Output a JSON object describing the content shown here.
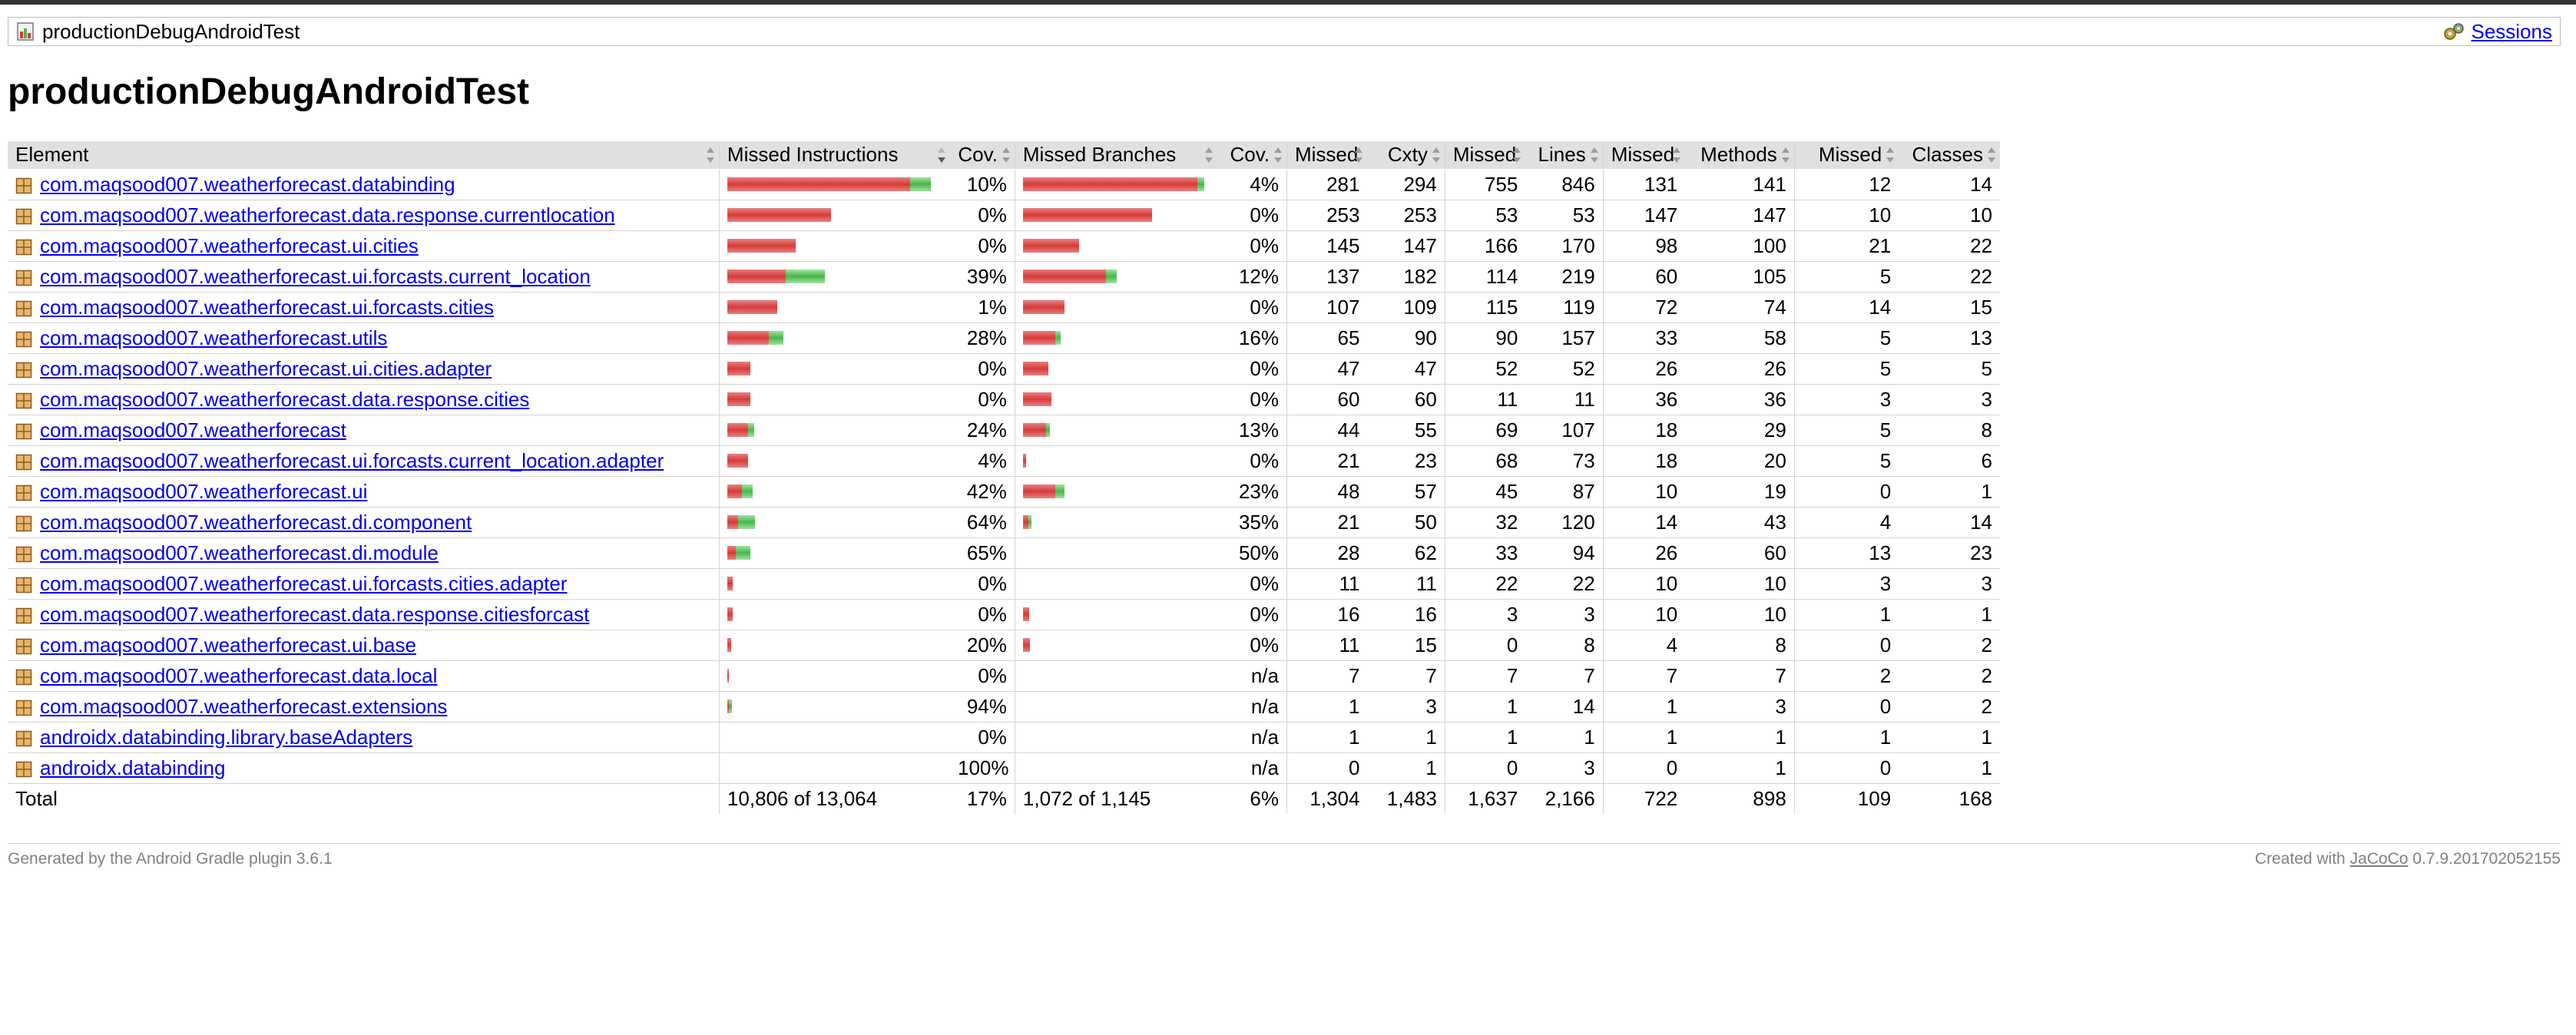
{
  "breadcrumb": {
    "report_label": "productionDebugAndroidTest",
    "sessions_label": "Sessions"
  },
  "page_title": "productionDebugAndroidTest",
  "table": {
    "headers": [
      "Element",
      "Missed Instructions",
      "Cov.",
      "Missed Branches",
      "Cov.",
      "Missed",
      "Cxty",
      "Missed",
      "Lines",
      "Missed",
      "Methods",
      "Missed",
      "Classes"
    ],
    "rows": [
      {
        "name": "com.maqsood007.weatherforecast.databinding",
        "instr_cov": "10%",
        "instr_bar": [
          0.88,
          0.1
        ],
        "branch_cov": "4%",
        "branch_bar": [
          0.97,
          0.04
        ],
        "cxty_missed": "281",
        "cxty": "294",
        "lines_missed": "755",
        "lines": "846",
        "methods_missed": "131",
        "methods": "141",
        "classes_missed": "12",
        "classes": "14"
      },
      {
        "name": "com.maqsood007.weatherforecast.data.response.currentlocation",
        "instr_cov": "0%",
        "instr_bar": [
          0.5,
          0
        ],
        "branch_cov": "0%",
        "branch_bar": [
          0.72,
          0
        ],
        "cxty_missed": "253",
        "cxty": "253",
        "lines_missed": "53",
        "lines": "53",
        "methods_missed": "147",
        "methods": "147",
        "classes_missed": "10",
        "classes": "10"
      },
      {
        "name": "com.maqsood007.weatherforecast.ui.cities",
        "instr_cov": "0%",
        "instr_bar": [
          0.33,
          0
        ],
        "branch_cov": "0%",
        "branch_bar": [
          0.31,
          0
        ],
        "cxty_missed": "145",
        "cxty": "147",
        "lines_missed": "166",
        "lines": "170",
        "methods_missed": "98",
        "methods": "100",
        "classes_missed": "21",
        "classes": "22"
      },
      {
        "name": "com.maqsood007.weatherforecast.ui.forcasts.current_location",
        "instr_cov": "39%",
        "instr_bar": [
          0.28,
          0.19
        ],
        "branch_cov": "12%",
        "branch_bar": [
          0.46,
          0.06
        ],
        "cxty_missed": "137",
        "cxty": "182",
        "lines_missed": "114",
        "lines": "219",
        "methods_missed": "60",
        "methods": "105",
        "classes_missed": "5",
        "classes": "22"
      },
      {
        "name": "com.maqsood007.weatherforecast.ui.forcasts.cities",
        "instr_cov": "1%",
        "instr_bar": [
          0.24,
          0
        ],
        "branch_cov": "0%",
        "branch_bar": [
          0.23,
          0
        ],
        "cxty_missed": "107",
        "cxty": "109",
        "lines_missed": "115",
        "lines": "119",
        "methods_missed": "72",
        "methods": "74",
        "classes_missed": "14",
        "classes": "15"
      },
      {
        "name": "com.maqsood007.weatherforecast.utils",
        "instr_cov": "28%",
        "instr_bar": [
          0.2,
          0.07
        ],
        "branch_cov": "16%",
        "branch_bar": [
          0.18,
          0.03
        ],
        "cxty_missed": "65",
        "cxty": "90",
        "lines_missed": "90",
        "lines": "157",
        "methods_missed": "33",
        "methods": "58",
        "classes_missed": "5",
        "classes": "13"
      },
      {
        "name": "com.maqsood007.weatherforecast.ui.cities.adapter",
        "instr_cov": "0%",
        "instr_bar": [
          0.11,
          0
        ],
        "branch_cov": "0%",
        "branch_bar": [
          0.14,
          0
        ],
        "cxty_missed": "47",
        "cxty": "47",
        "lines_missed": "52",
        "lines": "52",
        "methods_missed": "26",
        "methods": "26",
        "classes_missed": "5",
        "classes": "5"
      },
      {
        "name": "com.maqsood007.weatherforecast.data.response.cities",
        "instr_cov": "0%",
        "instr_bar": [
          0.11,
          0
        ],
        "branch_cov": "0%",
        "branch_bar": [
          0.16,
          0
        ],
        "cxty_missed": "60",
        "cxty": "60",
        "lines_missed": "11",
        "lines": "11",
        "methods_missed": "36",
        "methods": "36",
        "classes_missed": "3",
        "classes": "3"
      },
      {
        "name": "com.maqsood007.weatherforecast",
        "instr_cov": "24%",
        "instr_bar": [
          0.1,
          0.03
        ],
        "branch_cov": "13%",
        "branch_bar": [
          0.13,
          0.02
        ],
        "cxty_missed": "44",
        "cxty": "55",
        "lines_missed": "69",
        "lines": "107",
        "methods_missed": "18",
        "methods": "29",
        "classes_missed": "5",
        "classes": "8"
      },
      {
        "name": "com.maqsood007.weatherforecast.ui.forcasts.current_location.adapter",
        "instr_cov": "4%",
        "instr_bar": [
          0.1,
          0
        ],
        "branch_cov": "0%",
        "branch_bar": [
          0.015,
          0
        ],
        "cxty_missed": "21",
        "cxty": "23",
        "lines_missed": "68",
        "lines": "73",
        "methods_missed": "18",
        "methods": "20",
        "classes_missed": "5",
        "classes": "6"
      },
      {
        "name": "com.maqsood007.weatherforecast.ui",
        "instr_cov": "42%",
        "instr_bar": [
          0.07,
          0.05
        ],
        "branch_cov": "23%",
        "branch_bar": [
          0.18,
          0.05
        ],
        "cxty_missed": "48",
        "cxty": "57",
        "lines_missed": "45",
        "lines": "87",
        "methods_missed": "10",
        "methods": "19",
        "classes_missed": "0",
        "classes": "1"
      },
      {
        "name": "com.maqsood007.weatherforecast.di.component",
        "instr_cov": "64%",
        "instr_bar": [
          0.05,
          0.08
        ],
        "branch_cov": "35%",
        "branch_bar": [
          0.03,
          0.015
        ],
        "cxty_missed": "21",
        "cxty": "50",
        "lines_missed": "32",
        "lines": "120",
        "methods_missed": "14",
        "methods": "43",
        "classes_missed": "4",
        "classes": "14"
      },
      {
        "name": "com.maqsood007.weatherforecast.di.module",
        "instr_cov": "65%",
        "instr_bar": [
          0.04,
          0.07
        ],
        "branch_cov": "50%",
        "branch_bar": [
          0,
          0
        ],
        "cxty_missed": "28",
        "cxty": "62",
        "lines_missed": "33",
        "lines": "94",
        "methods_missed": "26",
        "methods": "60",
        "classes_missed": "13",
        "classes": "23"
      },
      {
        "name": "com.maqsood007.weatherforecast.ui.forcasts.cities.adapter",
        "instr_cov": "0%",
        "instr_bar": [
          0.025,
          0
        ],
        "branch_cov": "0%",
        "branch_bar": [
          0,
          0
        ],
        "cxty_missed": "11",
        "cxty": "11",
        "lines_missed": "22",
        "lines": "22",
        "methods_missed": "10",
        "methods": "10",
        "classes_missed": "3",
        "classes": "3"
      },
      {
        "name": "com.maqsood007.weatherforecast.data.response.citiesforcast",
        "instr_cov": "0%",
        "instr_bar": [
          0.025,
          0
        ],
        "branch_cov": "0%",
        "branch_bar": [
          0.035,
          0
        ],
        "cxty_missed": "16",
        "cxty": "16",
        "lines_missed": "3",
        "lines": "3",
        "methods_missed": "10",
        "methods": "10",
        "classes_missed": "1",
        "classes": "1"
      },
      {
        "name": "com.maqsood007.weatherforecast.ui.base",
        "instr_cov": "20%",
        "instr_bar": [
          0.02,
          0
        ],
        "branch_cov": "0%",
        "branch_bar": [
          0.04,
          0
        ],
        "cxty_missed": "11",
        "cxty": "15",
        "lines_missed": "0",
        "lines": "8",
        "methods_missed": "4",
        "methods": "8",
        "classes_missed": "0",
        "classes": "2"
      },
      {
        "name": "com.maqsood007.weatherforecast.data.local",
        "instr_cov": "0%",
        "instr_bar": [
          0.008,
          0
        ],
        "branch_cov": "n/a",
        "branch_bar": [
          0,
          0
        ],
        "cxty_missed": "7",
        "cxty": "7",
        "lines_missed": "7",
        "lines": "7",
        "methods_missed": "7",
        "methods": "7",
        "classes_missed": "2",
        "classes": "2"
      },
      {
        "name": "com.maqsood007.weatherforecast.extensions",
        "instr_cov": "94%",
        "instr_bar": [
          0.002,
          0.015
        ],
        "branch_cov": "n/a",
        "branch_bar": [
          0,
          0
        ],
        "cxty_missed": "1",
        "cxty": "3",
        "lines_missed": "1",
        "lines": "14",
        "methods_missed": "1",
        "methods": "3",
        "classes_missed": "0",
        "classes": "2"
      },
      {
        "name": "androidx.databinding.library.baseAdapters",
        "instr_cov": "0%",
        "instr_bar": [
          0,
          0
        ],
        "branch_cov": "n/a",
        "branch_bar": [
          0,
          0
        ],
        "cxty_missed": "1",
        "cxty": "1",
        "lines_missed": "1",
        "lines": "1",
        "methods_missed": "1",
        "methods": "1",
        "classes_missed": "1",
        "classes": "1"
      },
      {
        "name": "androidx.databinding",
        "instr_cov": "100%",
        "instr_bar": [
          0,
          0
        ],
        "branch_cov": "n/a",
        "branch_bar": [
          0,
          0
        ],
        "cxty_missed": "0",
        "cxty": "1",
        "lines_missed": "0",
        "lines": "3",
        "methods_missed": "0",
        "methods": "1",
        "classes_missed": "0",
        "classes": "1"
      }
    ],
    "total": {
      "label": "Total",
      "instr": "10,806 of 13,064",
      "instr_cov": "17%",
      "branch": "1,072 of 1,145",
      "branch_cov": "6%",
      "cxty_missed": "1,304",
      "cxty": "1,483",
      "lines_missed": "1,637",
      "lines": "2,166",
      "methods_missed": "722",
      "methods": "898",
      "classes_missed": "109",
      "classes": "168"
    }
  },
  "footer": {
    "generated": "Generated by the Android Gradle plugin 3.6.1",
    "created_prefix": "Created with",
    "created_link": "JaCoCo",
    "created_suffix": "0.7.9.201702052155"
  },
  "colors": {
    "missed": "#d63a3a",
    "covered": "#49b649",
    "header_bg": "#e0e0e0",
    "link": "#0000ee"
  },
  "icons": {
    "report": "report-icon",
    "sessions": "sessions-icon",
    "package": "package-icon"
  }
}
